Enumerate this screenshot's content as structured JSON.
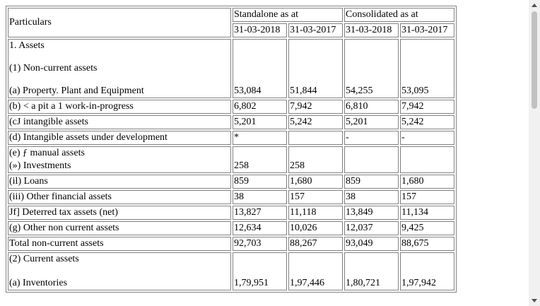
{
  "table": {
    "header": {
      "particulars": "Particulars",
      "standalone_group": "Standalone as at",
      "consolidated_group": "Consolidated as at",
      "dates": [
        "31-03-2018",
        "31-03-2017",
        "31-03-2018",
        "31-03-2017"
      ]
    },
    "section1": {
      "title": "1. Assets",
      "subtitle": "(1) Non-current assets",
      "first_item": "(a) Property. Plant and Equipment",
      "first_values": [
        "53,084",
        "51,844",
        "54,255",
        "53,095"
      ]
    },
    "rows": [
      {
        "label": "(b) < a pit a 1 work-in-progress",
        "values": [
          "6,802",
          "7,942",
          "6,810",
          "7,942"
        ]
      },
      {
        "label": "(cJ intangible assets",
        "values": [
          "5,201",
          "5,242",
          "5,201",
          "5,242"
        ]
      },
      {
        "label": "(d) Intangible assets under development",
        "values": [
          "*",
          "",
          "-",
          "-"
        ]
      }
    ],
    "financial": {
      "title": "(e) ƒ manual assets",
      "item": "(») Investments",
      "values": [
        "258",
        "258",
        "",
        ""
      ]
    },
    "rows2": [
      {
        "label": "(il) Loans",
        "values": [
          "859",
          "1,680",
          "859",
          "1,680"
        ]
      },
      {
        "label": "(iii) Other financial assets",
        "values": [
          "38",
          "157",
          "38",
          "157"
        ]
      },
      {
        "label": "Jf] Deterred tax assets (net)",
        "values": [
          "13,827",
          "11,118",
          "13,849",
          "11,134"
        ]
      },
      {
        "label": "(g) Other non current assets",
        "values": [
          "12,634",
          "10,026",
          "12,037",
          "9,425"
        ]
      },
      {
        "label": "Total non-current assets",
        "values": [
          "92,703",
          "88,267",
          "93,049",
          "88,675"
        ]
      }
    ],
    "section2": {
      "title": "(2) Current assets",
      "item": "(a) Inventories",
      "values": [
        "1,79,951",
        "1,97,446",
        "1,80,721",
        "1,97,942"
      ]
    }
  }
}
